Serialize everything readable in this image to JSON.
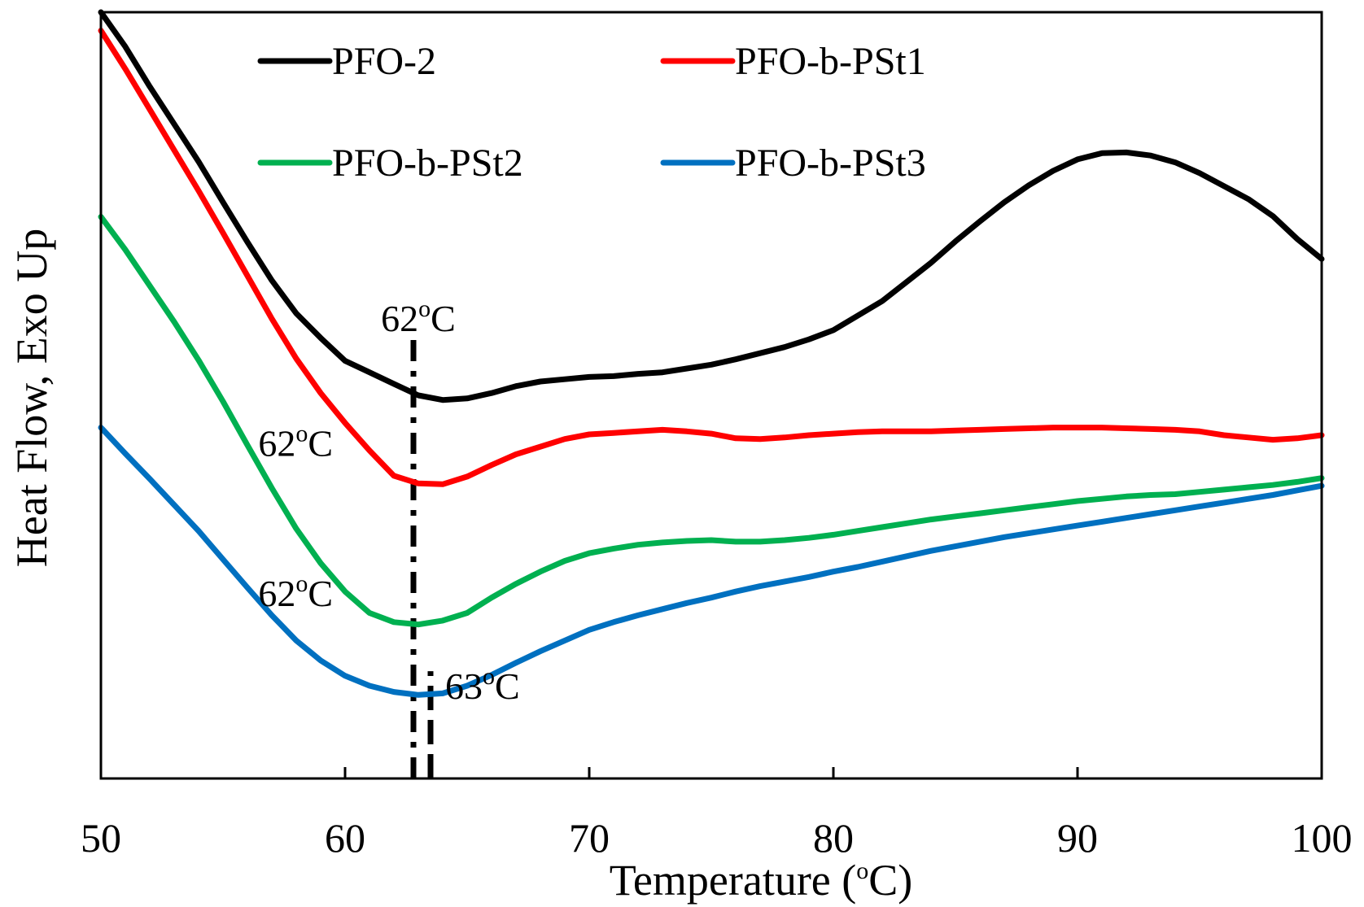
{
  "chart_data": {
    "type": "line",
    "title": "",
    "xlabel": "Temperature (oC)",
    "ylabel": "Heat Flow, Exo Up",
    "xlim": [
      50,
      100
    ],
    "ylim": [
      0,
      100
    ],
    "xticks": [
      50,
      60,
      70,
      80,
      90,
      100
    ],
    "grid": false,
    "legend_position": "top",
    "series": [
      {
        "name": "PFO-2",
        "color": "#000000",
        "points": [
          [
            50,
            100
          ],
          [
            51,
            95.5
          ],
          [
            52,
            90.3
          ],
          [
            53,
            85.4
          ],
          [
            54,
            80.5
          ],
          [
            55,
            75.2
          ],
          [
            56,
            70.0
          ],
          [
            57,
            65.0
          ],
          [
            58,
            60.7
          ],
          [
            59,
            57.5
          ],
          [
            60,
            54.5
          ],
          [
            61,
            53.0
          ],
          [
            62,
            51.5
          ],
          [
            63,
            50.0
          ],
          [
            64,
            49.4
          ],
          [
            65,
            49.6
          ],
          [
            66,
            50.3
          ],
          [
            67,
            51.2
          ],
          [
            68,
            51.8
          ],
          [
            69,
            52.1
          ],
          [
            70,
            52.4
          ],
          [
            71,
            52.5
          ],
          [
            72,
            52.8
          ],
          [
            73,
            53.0
          ],
          [
            74,
            53.5
          ],
          [
            75,
            54.0
          ],
          [
            76,
            54.7
          ],
          [
            77,
            55.5
          ],
          [
            78,
            56.3
          ],
          [
            79,
            57.3
          ],
          [
            80,
            58.5
          ],
          [
            81,
            60.4
          ],
          [
            82,
            62.3
          ],
          [
            83,
            64.8
          ],
          [
            84,
            67.3
          ],
          [
            85,
            70.1
          ],
          [
            86,
            72.7
          ],
          [
            87,
            75.2
          ],
          [
            88,
            77.4
          ],
          [
            89,
            79.3
          ],
          [
            90,
            80.8
          ],
          [
            91,
            81.6
          ],
          [
            92,
            81.7
          ],
          [
            93,
            81.3
          ],
          [
            94,
            80.4
          ],
          [
            95,
            79.0
          ],
          [
            96,
            77.3
          ],
          [
            97,
            75.6
          ],
          [
            98,
            73.4
          ],
          [
            99,
            70.4
          ],
          [
            100,
            67.8
          ]
        ]
      },
      {
        "name": "PFO-b-PSt1",
        "color": "#ff0000",
        "points": [
          [
            50,
            97.6
          ],
          [
            51,
            92.6
          ],
          [
            52,
            87.3
          ],
          [
            53,
            82.0
          ],
          [
            54,
            76.7
          ],
          [
            55,
            71.2
          ],
          [
            56,
            65.6
          ],
          [
            57,
            60.0
          ],
          [
            58,
            54.8
          ],
          [
            59,
            50.3
          ],
          [
            60,
            46.4
          ],
          [
            61,
            42.8
          ],
          [
            62,
            39.5
          ],
          [
            63,
            38.5
          ],
          [
            64,
            38.4
          ],
          [
            65,
            39.4
          ],
          [
            66,
            40.9
          ],
          [
            67,
            42.3
          ],
          [
            68,
            43.3
          ],
          [
            69,
            44.3
          ],
          [
            70,
            44.9
          ],
          [
            71,
            45.1
          ],
          [
            72,
            45.3
          ],
          [
            73,
            45.5
          ],
          [
            74,
            45.3
          ],
          [
            75,
            45.0
          ],
          [
            76,
            44.4
          ],
          [
            77,
            44.3
          ],
          [
            78,
            44.5
          ],
          [
            79,
            44.8
          ],
          [
            80,
            45.0
          ],
          [
            81,
            45.2
          ],
          [
            82,
            45.3
          ],
          [
            83,
            45.3
          ],
          [
            84,
            45.3
          ],
          [
            85,
            45.4
          ],
          [
            86,
            45.5
          ],
          [
            87,
            45.6
          ],
          [
            88,
            45.7
          ],
          [
            89,
            45.8
          ],
          [
            90,
            45.8
          ],
          [
            91,
            45.8
          ],
          [
            92,
            45.7
          ],
          [
            93,
            45.6
          ],
          [
            94,
            45.5
          ],
          [
            95,
            45.3
          ],
          [
            96,
            44.8
          ],
          [
            97,
            44.5
          ],
          [
            98,
            44.2
          ],
          [
            99,
            44.4
          ],
          [
            100,
            44.8
          ]
        ]
      },
      {
        "name": "PFO-b-PSt2",
        "color": "#00b050",
        "points": [
          [
            50,
            73.3
          ],
          [
            51,
            69.0
          ],
          [
            52,
            64.3
          ],
          [
            53,
            59.6
          ],
          [
            54,
            54.6
          ],
          [
            55,
            49.2
          ],
          [
            56,
            43.5
          ],
          [
            57,
            37.9
          ],
          [
            58,
            32.6
          ],
          [
            59,
            28.1
          ],
          [
            60,
            24.4
          ],
          [
            61,
            21.6
          ],
          [
            62,
            20.4
          ],
          [
            63,
            20.1
          ],
          [
            64,
            20.6
          ],
          [
            65,
            21.6
          ],
          [
            66,
            23.6
          ],
          [
            67,
            25.4
          ],
          [
            68,
            27.0
          ],
          [
            69,
            28.4
          ],
          [
            70,
            29.4
          ],
          [
            71,
            30.0
          ],
          [
            72,
            30.5
          ],
          [
            73,
            30.8
          ],
          [
            74,
            31.0
          ],
          [
            75,
            31.1
          ],
          [
            76,
            30.9
          ],
          [
            77,
            30.9
          ],
          [
            78,
            31.1
          ],
          [
            79,
            31.4
          ],
          [
            80,
            31.8
          ],
          [
            81,
            32.3
          ],
          [
            82,
            32.8
          ],
          [
            83,
            33.3
          ],
          [
            84,
            33.8
          ],
          [
            85,
            34.2
          ],
          [
            86,
            34.6
          ],
          [
            87,
            35.0
          ],
          [
            88,
            35.4
          ],
          [
            89,
            35.8
          ],
          [
            90,
            36.2
          ],
          [
            91,
            36.5
          ],
          [
            92,
            36.8
          ],
          [
            93,
            37.0
          ],
          [
            94,
            37.1
          ],
          [
            95,
            37.4
          ],
          [
            96,
            37.7
          ],
          [
            97,
            38.0
          ],
          [
            98,
            38.3
          ],
          [
            99,
            38.7
          ],
          [
            100,
            39.2
          ]
        ]
      },
      {
        "name": "PFO-b-PSt3",
        "color": "#0070c0",
        "points": [
          [
            50,
            45.8
          ],
          [
            51,
            42.4
          ],
          [
            52,
            39.1
          ],
          [
            53,
            35.7
          ],
          [
            54,
            32.3
          ],
          [
            55,
            28.6
          ],
          [
            56,
            24.9
          ],
          [
            57,
            21.3
          ],
          [
            58,
            18.0
          ],
          [
            59,
            15.4
          ],
          [
            60,
            13.4
          ],
          [
            61,
            12.1
          ],
          [
            62,
            11.3
          ],
          [
            63,
            10.9
          ],
          [
            64,
            11.1
          ],
          [
            65,
            12.1
          ],
          [
            66,
            13.5
          ],
          [
            67,
            15.1
          ],
          [
            68,
            16.6
          ],
          [
            69,
            18.0
          ],
          [
            70,
            19.4
          ],
          [
            71,
            20.4
          ],
          [
            72,
            21.3
          ],
          [
            73,
            22.1
          ],
          [
            74,
            22.9
          ],
          [
            75,
            23.6
          ],
          [
            76,
            24.4
          ],
          [
            77,
            25.1
          ],
          [
            78,
            25.7
          ],
          [
            79,
            26.3
          ],
          [
            80,
            27.0
          ],
          [
            81,
            27.6
          ],
          [
            82,
            28.3
          ],
          [
            83,
            29.0
          ],
          [
            84,
            29.7
          ],
          [
            85,
            30.3
          ],
          [
            86,
            30.9
          ],
          [
            87,
            31.5
          ],
          [
            88,
            32.0
          ],
          [
            89,
            32.5
          ],
          [
            90,
            33.0
          ],
          [
            91,
            33.5
          ],
          [
            92,
            34.0
          ],
          [
            93,
            34.5
          ],
          [
            94,
            35.0
          ],
          [
            95,
            35.5
          ],
          [
            96,
            36.0
          ],
          [
            97,
            36.5
          ],
          [
            98,
            37.0
          ],
          [
            99,
            37.6
          ],
          [
            100,
            38.2
          ]
        ]
      }
    ],
    "annotations": [
      {
        "text": "62",
        "unit": "oC",
        "x": 63,
        "y": 58.4,
        "align": "middle"
      },
      {
        "text": "62",
        "unit": "oC",
        "x": 59.5,
        "y": 42.1,
        "align": "end"
      },
      {
        "text": "62",
        "unit": "oC",
        "x": 59.5,
        "y": 22.5,
        "align": "end"
      },
      {
        "text": "63",
        "unit": "oC",
        "x": 64.1,
        "y": 10.4,
        "align": "start"
      }
    ],
    "marker_lines": [
      {
        "x": 62.8,
        "y_from": 0,
        "y_to": 58.5,
        "style": "dashdot"
      },
      {
        "x": 63.5,
        "y_from": 0,
        "y_to": 14,
        "style": "dashed"
      }
    ]
  }
}
